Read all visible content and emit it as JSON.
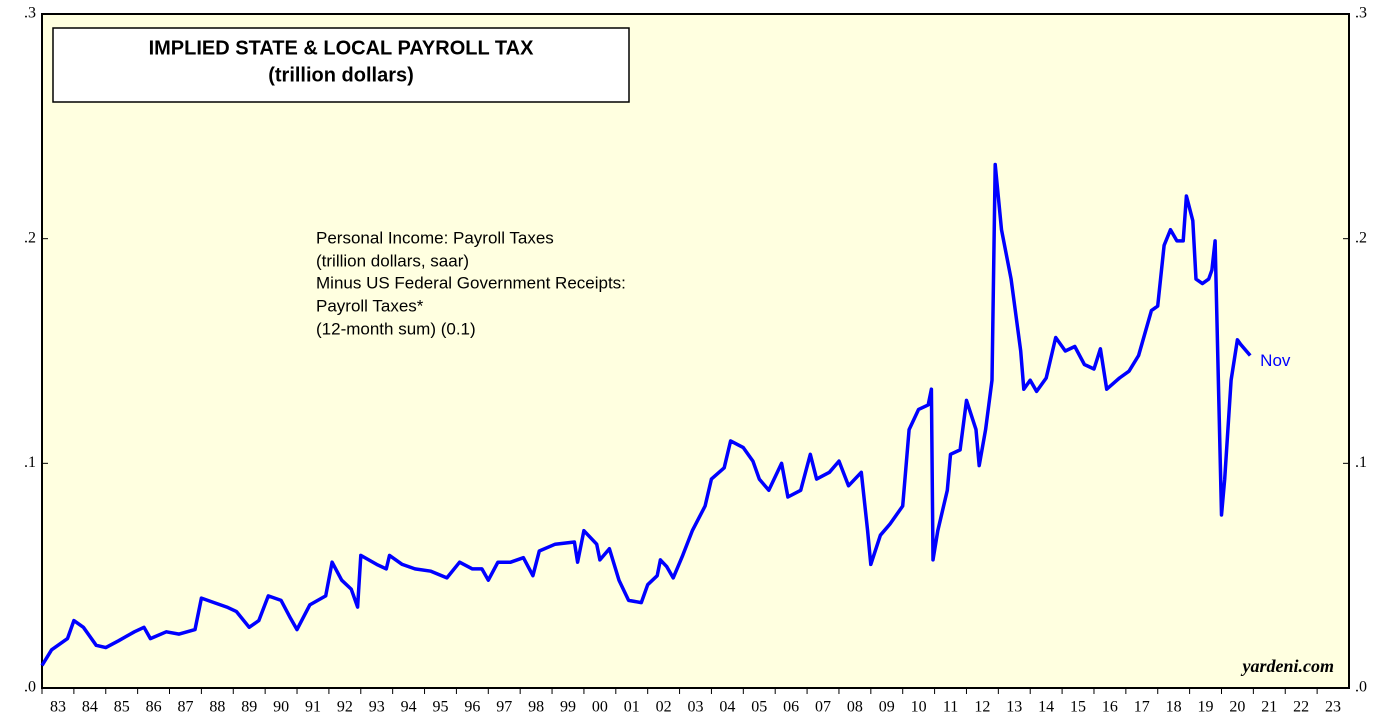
{
  "chart_data": {
    "type": "line",
    "title": "IMPLIED STATE & LOCAL PAYROLL TAX",
    "subtitle": "(trillion dollars)",
    "annotation": [
      "Personal Income: Payroll Taxes",
      "(trillion dollars, saar)",
      "Minus US Federal Government Receipts:",
      "Payroll Taxes*",
      "(12-month sum)  (0.1)"
    ],
    "end_label": "Nov",
    "source": "yardeni.com",
    "xlim": [
      1983,
      2024
    ],
    "xticks": [
      {
        "value": 1983,
        "label": "83"
      },
      {
        "value": 1984,
        "label": "84"
      },
      {
        "value": 1985,
        "label": "85"
      },
      {
        "value": 1986,
        "label": "86"
      },
      {
        "value": 1987,
        "label": "87"
      },
      {
        "value": 1988,
        "label": "88"
      },
      {
        "value": 1989,
        "label": "89"
      },
      {
        "value": 1990,
        "label": "90"
      },
      {
        "value": 1991,
        "label": "91"
      },
      {
        "value": 1992,
        "label": "92"
      },
      {
        "value": 1993,
        "label": "93"
      },
      {
        "value": 1994,
        "label": "94"
      },
      {
        "value": 1995,
        "label": "95"
      },
      {
        "value": 1996,
        "label": "96"
      },
      {
        "value": 1997,
        "label": "97"
      },
      {
        "value": 1998,
        "label": "98"
      },
      {
        "value": 1999,
        "label": "99"
      },
      {
        "value": 2000,
        "label": "00"
      },
      {
        "value": 2001,
        "label": "01"
      },
      {
        "value": 2002,
        "label": "02"
      },
      {
        "value": 2003,
        "label": "03"
      },
      {
        "value": 2004,
        "label": "04"
      },
      {
        "value": 2005,
        "label": "05"
      },
      {
        "value": 2006,
        "label": "06"
      },
      {
        "value": 2007,
        "label": "07"
      },
      {
        "value": 2008,
        "label": "08"
      },
      {
        "value": 2009,
        "label": "09"
      },
      {
        "value": 2010,
        "label": "10"
      },
      {
        "value": 2011,
        "label": "11"
      },
      {
        "value": 2012,
        "label": "12"
      },
      {
        "value": 2013,
        "label": "13"
      },
      {
        "value": 2014,
        "label": "14"
      },
      {
        "value": 2015,
        "label": "15"
      },
      {
        "value": 2016,
        "label": "16"
      },
      {
        "value": 2017,
        "label": "17"
      },
      {
        "value": 2018,
        "label": "18"
      },
      {
        "value": 2019,
        "label": "19"
      },
      {
        "value": 2020,
        "label": "20"
      },
      {
        "value": 2021,
        "label": "21"
      },
      {
        "value": 2022,
        "label": "22"
      },
      {
        "value": 2023,
        "label": "23"
      }
    ],
    "ylim": [
      0,
      0.3
    ],
    "yticks": [
      {
        "value": 0,
        "label": ".0"
      },
      {
        "value": 0.1,
        "label": ".1"
      },
      {
        "value": 0.2,
        "label": ".2"
      },
      {
        "value": 0.3,
        "label": ".3"
      }
    ],
    "series": [
      {
        "color": "#0000ff",
        "x": [
          1983.0,
          1983.3,
          1983.8,
          1984.0,
          1984.3,
          1984.7,
          1985.0,
          1985.4,
          1985.9,
          1986.2,
          1986.4,
          1986.9,
          1987.3,
          1987.8,
          1988.0,
          1988.4,
          1988.8,
          1989.1,
          1989.5,
          1989.8,
          1990.1,
          1990.5,
          1990.8,
          1991.0,
          1991.4,
          1991.9,
          1992.1,
          1992.4,
          1992.7,
          1992.9,
          1993.0,
          1993.5,
          1993.8,
          1993.9,
          1994.3,
          1994.7,
          1995.2,
          1995.7,
          1996.1,
          1996.5,
          1996.8,
          1997.0,
          1997.3,
          1997.7,
          1998.1,
          1998.4,
          1998.6,
          1999.1,
          1999.7,
          1999.8,
          2000.0,
          2000.4,
          2000.5,
          2000.8,
          2001.1,
          2001.4,
          2001.8,
          2002.0,
          2002.3,
          2002.4,
          2002.6,
          2002.8,
          2003.1,
          2003.4,
          2003.8,
          2004.0,
          2004.4,
          2004.6,
          2005.0,
          2005.3,
          2005.5,
          2005.8,
          2006.2,
          2006.4,
          2006.8,
          2007.1,
          2007.3,
          2007.7,
          2008.0,
          2008.3,
          2008.7,
          2008.9,
          2009.0,
          2009.3,
          2009.6,
          2010.0,
          2010.2,
          2010.5,
          2010.8,
          2010.9,
          2010.95,
          2011.1,
          2011.4,
          2011.5,
          2011.8,
          2012.0,
          2012.3,
          2012.4,
          2012.6,
          2012.8,
          2012.9,
          2013.1,
          2013.4,
          2013.7,
          2013.8,
          2014.0,
          2014.2,
          2014.5,
          2014.8,
          2015.1,
          2015.4,
          2015.7,
          2016.0,
          2016.2,
          2016.4,
          2016.8,
          2017.1,
          2017.4,
          2017.8,
          2018.0,
          2018.2,
          2018.4,
          2018.6,
          2018.8,
          2018.9,
          2019.1,
          2019.2,
          2019.4,
          2019.6,
          2019.7,
          2019.8,
          2020.0,
          2020.1,
          2020.3,
          2020.5,
          2020.6,
          2020.9
        ],
        "values": [
          0.01,
          0.017,
          0.022,
          0.03,
          0.027,
          0.019,
          0.018,
          0.021,
          0.025,
          0.027,
          0.022,
          0.025,
          0.024,
          0.026,
          0.04,
          0.038,
          0.036,
          0.034,
          0.027,
          0.03,
          0.041,
          0.039,
          0.031,
          0.026,
          0.037,
          0.041,
          0.056,
          0.048,
          0.044,
          0.036,
          0.059,
          0.055,
          0.053,
          0.059,
          0.055,
          0.053,
          0.052,
          0.049,
          0.056,
          0.053,
          0.053,
          0.048,
          0.056,
          0.056,
          0.058,
          0.05,
          0.061,
          0.064,
          0.065,
          0.056,
          0.07,
          0.064,
          0.057,
          0.062,
          0.048,
          0.039,
          0.038,
          0.046,
          0.05,
          0.057,
          0.054,
          0.049,
          0.059,
          0.07,
          0.081,
          0.093,
          0.098,
          0.11,
          0.107,
          0.101,
          0.093,
          0.088,
          0.1,
          0.085,
          0.088,
          0.104,
          0.093,
          0.096,
          0.101,
          0.09,
          0.096,
          0.07,
          0.055,
          0.068,
          0.073,
          0.081,
          0.115,
          0.124,
          0.126,
          0.133,
          0.057,
          0.07,
          0.088,
          0.104,
          0.106,
          0.128,
          0.115,
          0.099,
          0.115,
          0.137,
          0.233,
          0.204,
          0.182,
          0.15,
          0.133,
          0.137,
          0.132,
          0.138,
          0.156,
          0.15,
          0.152,
          0.144,
          0.142,
          0.151,
          0.133,
          0.138,
          0.141,
          0.148,
          0.168,
          0.17,
          0.197,
          0.204,
          0.199,
          0.199,
          0.219,
          0.208,
          0.182,
          0.18,
          0.182,
          0.186,
          0.199,
          0.077,
          0.093,
          0.137,
          0.155,
          0.153,
          0.148
        ]
      }
    ]
  }
}
